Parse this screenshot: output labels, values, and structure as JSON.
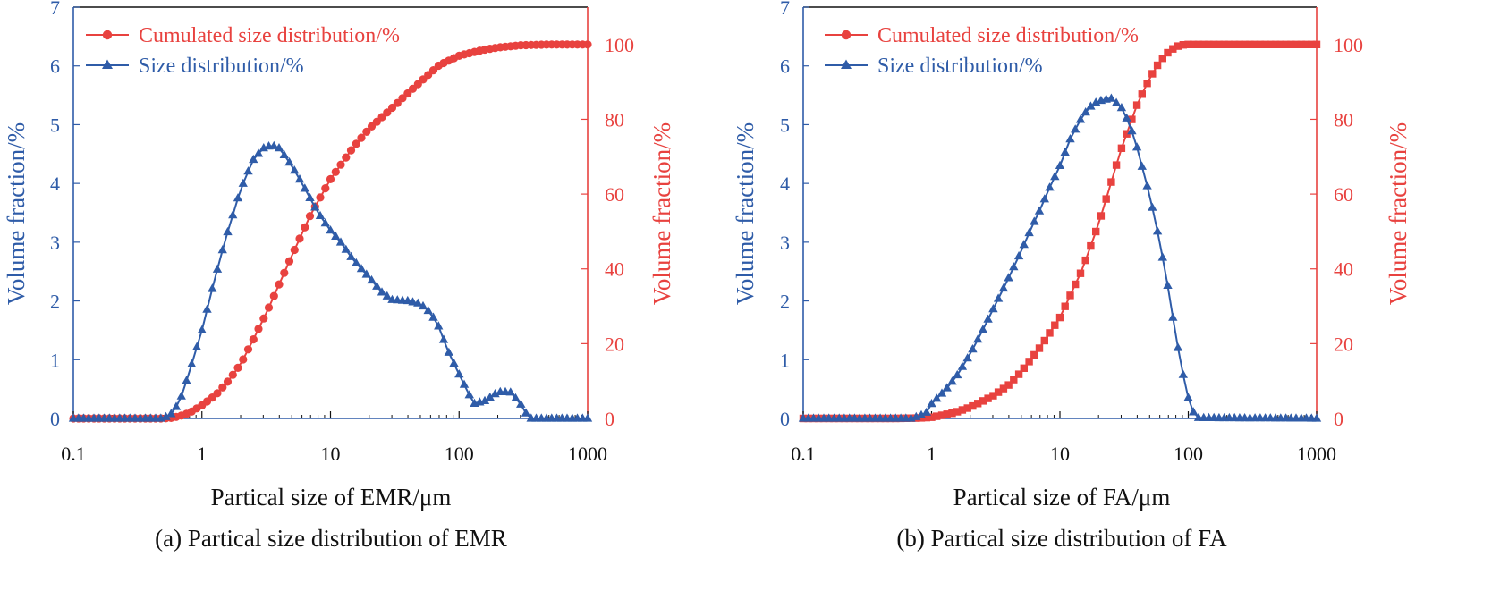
{
  "colors": {
    "blue": "#2f5ca8",
    "red": "#e8423f",
    "axis": "#111111"
  },
  "chart_data": [
    {
      "type": "line",
      "panel": "a",
      "caption": "(a) Partical size distribution of EMR",
      "xlabel": "Partical size of EMR/μm",
      "ylabel_left": "Volume fraction/%",
      "ylabel_right": "Volume fraction/%",
      "x_scale": "log",
      "xlim": [
        0.1,
        1000
      ],
      "ylim_left": [
        0,
        7
      ],
      "ylim_right": [
        0,
        110
      ],
      "x_ticks": [
        0.1,
        1,
        10,
        100,
        1000
      ],
      "x_tick_labels": [
        "0.1",
        "1",
        "10",
        "100",
        "1000"
      ],
      "y_left_ticks": [
        0,
        1,
        2,
        3,
        4,
        5,
        6,
        7
      ],
      "y_left_tick_labels": [
        "0",
        "1",
        "2",
        "3",
        "4",
        "5",
        "6",
        "7"
      ],
      "y_right_ticks": [
        0,
        20,
        40,
        60,
        80,
        100
      ],
      "y_right_tick_labels": [
        "0",
        "20",
        "40",
        "60",
        "80",
        "100"
      ],
      "legend_position": "top-left",
      "series": [
        {
          "name": "Cumulated size distribution/%",
          "axis": "right",
          "marker": "circle",
          "x": [
            0.1,
            0.3,
            0.5,
            0.6,
            0.7,
            0.8,
            1.0,
            1.3,
            1.6,
            2.0,
            2.5,
            3.2,
            4.0,
            5.0,
            7.0,
            10,
            15,
            20,
            30,
            40,
            50,
            70,
            100,
            150,
            200,
            300,
            500,
            1000
          ],
          "values": [
            0,
            0,
            0,
            0.2,
            0.8,
            1.5,
            3.5,
            6.5,
            10.0,
            14.5,
            21.0,
            28.5,
            36.0,
            43.5,
            54.5,
            64.0,
            72.5,
            77.5,
            83.0,
            87.0,
            90.0,
            94.5,
            97.0,
            98.5,
            99.2,
            99.8,
            100,
            100
          ]
        },
        {
          "name": "Size distribution/%",
          "axis": "left",
          "marker": "triangle",
          "x": [
            0.1,
            0.5,
            0.6,
            0.7,
            0.8,
            1.0,
            1.2,
            1.5,
            2.0,
            2.5,
            3.0,
            3.5,
            4.0,
            5.0,
            6.0,
            8.0,
            10,
            12,
            15,
            20,
            25,
            30,
            40,
            50,
            60,
            70,
            80,
            100,
            130,
            160,
            200,
            250,
            300,
            350,
            400,
            1000
          ],
          "values": [
            0,
            0,
            0.1,
            0.4,
            0.8,
            1.5,
            2.2,
            3.0,
            3.9,
            4.4,
            4.6,
            4.65,
            4.6,
            4.3,
            4.0,
            3.5,
            3.2,
            3.0,
            2.7,
            2.4,
            2.15,
            2.02,
            2.0,
            1.95,
            1.8,
            1.55,
            1.2,
            0.75,
            0.25,
            0.3,
            0.45,
            0.45,
            0.25,
            0,
            0,
            0
          ]
        }
      ]
    },
    {
      "type": "line",
      "panel": "b",
      "caption": "(b) Partical size distribution of FA",
      "xlabel": "Partical size of FA/μm",
      "ylabel_left": "Volume fraction/%",
      "ylabel_right": "Volume fraction/%",
      "x_scale": "log",
      "xlim": [
        0.1,
        1000
      ],
      "ylim_left": [
        0,
        7
      ],
      "ylim_right": [
        0,
        110
      ],
      "x_ticks": [
        0.1,
        1,
        10,
        100,
        1000
      ],
      "x_tick_labels": [
        "0.1",
        "1",
        "10",
        "100",
        "1000"
      ],
      "y_left_ticks": [
        0,
        1,
        2,
        3,
        4,
        5,
        6,
        7
      ],
      "y_left_tick_labels": [
        "0",
        "1",
        "2",
        "3",
        "4",
        "5",
        "6",
        "7"
      ],
      "y_right_ticks": [
        0,
        20,
        40,
        60,
        80,
        100
      ],
      "y_right_tick_labels": [
        "0",
        "20",
        "40",
        "60",
        "80",
        "100"
      ],
      "legend_position": "top-left",
      "series": [
        {
          "name": "Cumulated size distribution/%",
          "axis": "right",
          "marker": "square",
          "x": [
            0.1,
            0.5,
            0.8,
            1.0,
            1.5,
            2.0,
            3.0,
            4.0,
            5.0,
            7.0,
            10,
            15,
            20,
            25,
            30,
            40,
            50,
            60,
            70,
            80,
            90,
            100,
            1000
          ],
          "values": [
            0,
            0,
            0.1,
            0.3,
            1.5,
            3.0,
            6.0,
            9.0,
            12.5,
            19.0,
            27.0,
            40.0,
            52.0,
            63.0,
            72.0,
            84.0,
            91.0,
            95.5,
            98.0,
            99.4,
            99.9,
            100,
            100
          ]
        },
        {
          "name": "Size distribution/%",
          "axis": "left",
          "marker": "triangle",
          "x": [
            0.1,
            0.7,
            0.9,
            1.0,
            1.3,
            1.6,
            2.0,
            2.5,
            3.0,
            4.0,
            5.0,
            6.0,
            7.0,
            8.0,
            10,
            12,
            15,
            18,
            20,
            25,
            30,
            35,
            40,
            50,
            60,
            70,
            80,
            90,
            100,
            110,
            120,
            1000
          ],
          "values": [
            0,
            0,
            0.08,
            0.25,
            0.5,
            0.75,
            1.1,
            1.5,
            1.85,
            2.4,
            2.85,
            3.25,
            3.55,
            3.85,
            4.3,
            4.75,
            5.15,
            5.35,
            5.4,
            5.45,
            5.3,
            5.0,
            4.6,
            3.8,
            3.0,
            2.2,
            1.4,
            0.8,
            0.35,
            0.1,
            0.01,
            0
          ]
        }
      ]
    }
  ]
}
